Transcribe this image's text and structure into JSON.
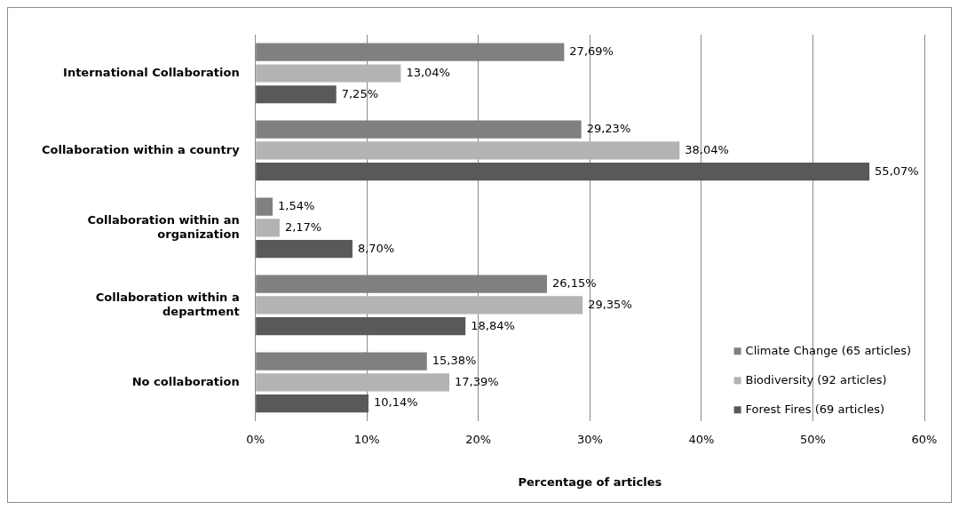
{
  "chart_data": {
    "type": "bar",
    "orientation": "horizontal",
    "xlabel": "Percentage of articles",
    "categories": [
      "International Collaboration",
      "Collaboration within a country",
      "Collaboration within an organization",
      "Collaboration within a department",
      "No collaboration"
    ],
    "series": [
      {
        "name": "Climate Change (65 articles)",
        "color": "#808080",
        "values": [
          27.69,
          29.23,
          1.54,
          26.15,
          15.38
        ],
        "value_labels": [
          "27,69%",
          "29,23%",
          "1,54%",
          "26,15%",
          "15,38%"
        ]
      },
      {
        "name": "Biodiversity (92 articles)",
        "color": "#b3b3b3",
        "values": [
          13.04,
          38.04,
          2.17,
          29.35,
          17.39
        ],
        "value_labels": [
          "13,04%",
          "38,04%",
          "2,17%",
          "29,35%",
          "17,39%"
        ]
      },
      {
        "name": "Forest Fires (69 articles)",
        "color": "#595959",
        "values": [
          7.25,
          55.07,
          8.7,
          18.84,
          10.14
        ],
        "value_labels": [
          "7,25%",
          "55,07%",
          "8,70%",
          "18,84%",
          "10,14%"
        ]
      }
    ],
    "xlim": [
      0,
      60
    ],
    "xticks": [
      {
        "value": 0,
        "label": "0%"
      },
      {
        "value": 10,
        "label": "10%"
      },
      {
        "value": 20,
        "label": "20%"
      },
      {
        "value": 30,
        "label": "30%"
      },
      {
        "value": 40,
        "label": "40%"
      },
      {
        "value": 50,
        "label": "50%"
      },
      {
        "value": 60,
        "label": "60%"
      }
    ],
    "grid": "x",
    "legend": "bottom right"
  }
}
